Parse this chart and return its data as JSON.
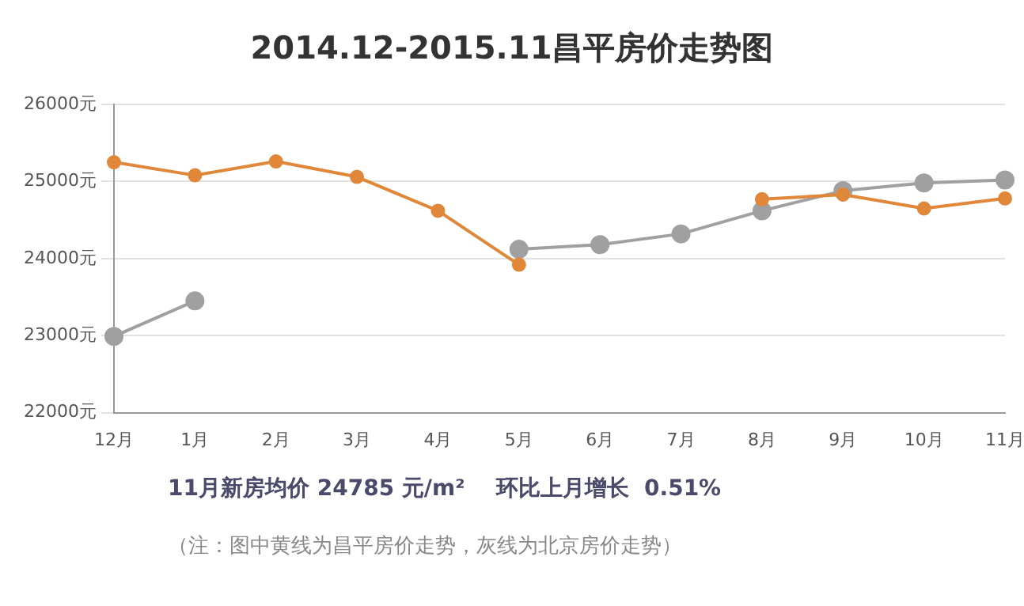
{
  "chart_data": {
    "type": "line",
    "title": "2014.12-2015.11昌平房价走势图",
    "categories": [
      "12月",
      "1月",
      "2月",
      "3月",
      "4月",
      "5月",
      "6月",
      "7月",
      "8月",
      "9月",
      "10月",
      "11月"
    ],
    "series": [
      {
        "color": "#e0873a",
        "values": [
          25250,
          25080,
          25260,
          25060,
          24620,
          23920,
          null,
          null,
          24770,
          24830,
          24650,
          24780
        ]
      },
      {
        "color": "#a0a0a0",
        "values": [
          22990,
          23450,
          null,
          null,
          null,
          24120,
          24180,
          24320,
          24620,
          24880,
          24980,
          25020
        ]
      }
    ],
    "ylim": [
      22000,
      26000
    ],
    "yticks": [
      {
        "value": 22000,
        "label": "22000元"
      },
      {
        "value": 23000,
        "label": "23000元"
      },
      {
        "value": 24000,
        "label": "24000元"
      },
      {
        "value": 25000,
        "label": "25000元"
      },
      {
        "value": 26000,
        "label": "26000元"
      }
    ],
    "grid": "y",
    "marker": "circle",
    "line_style": "solid",
    "legend": false,
    "annotations": [
      "11月新房均价 24785 元/m²    环比上月增长  0.51%",
      "（注：图中黄线为昌平房价走势，灰线为北京房价走势）"
    ]
  }
}
